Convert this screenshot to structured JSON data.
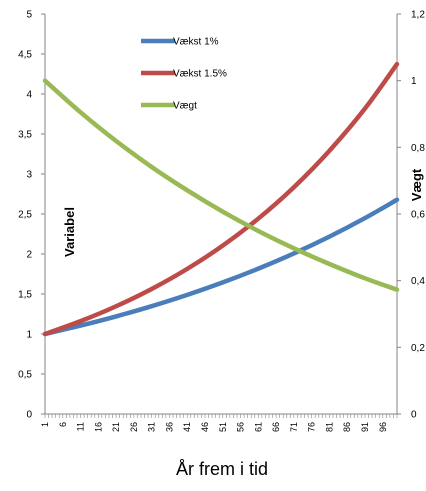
{
  "chart_data": {
    "type": "line",
    "title": "",
    "xlabel": "År frem i tid",
    "ylabel": "Variabel",
    "y2label": "Vægt",
    "x_ticks": [
      "1",
      "6",
      "11",
      "16",
      "21",
      "26",
      "31",
      "36",
      "41",
      "46",
      "51",
      "56",
      "61",
      "66",
      "71",
      "76",
      "81",
      "86",
      "91",
      "96"
    ],
    "x_range": [
      1,
      100
    ],
    "ylim": [
      0,
      5
    ],
    "y_ticks": [
      "0",
      "0,5",
      "1",
      "1,5",
      "2",
      "2,5",
      "3",
      "3,5",
      "4",
      "4,5",
      "5"
    ],
    "y2lim": [
      0,
      1.2
    ],
    "y2_ticks": [
      "0",
      "0,2",
      "0,4",
      "0,6",
      "0,8",
      "1",
      "1,2"
    ],
    "legend_placement": "top-center",
    "grid": false,
    "series": [
      {
        "name": "Vækst 1%",
        "color": "#4a7ebb",
        "axis": "left",
        "x": [
          1,
          11,
          21,
          31,
          41,
          51,
          61,
          71,
          81,
          91,
          100
        ],
        "values": [
          1.0,
          1.105,
          1.22,
          1.348,
          1.489,
          1.645,
          1.817,
          2.007,
          2.217,
          2.449,
          2.678
        ]
      },
      {
        "name": "Vækst 1.5%",
        "color": "#be4b48",
        "axis": "left",
        "x": [
          1,
          11,
          21,
          31,
          41,
          51,
          61,
          71,
          81,
          91,
          100
        ],
        "values": [
          1.0,
          1.161,
          1.347,
          1.563,
          1.814,
          2.105,
          2.443,
          2.835,
          3.291,
          3.819,
          4.374
        ]
      },
      {
        "name": "Vægt",
        "color": "#98b954",
        "axis": "right",
        "x": [
          1,
          11,
          21,
          31,
          41,
          51,
          61,
          71,
          81,
          91,
          100
        ],
        "values": [
          1.0,
          0.905,
          0.819,
          0.741,
          0.671,
          0.607,
          0.549,
          0.497,
          0.45,
          0.407,
          0.373
        ]
      }
    ]
  }
}
